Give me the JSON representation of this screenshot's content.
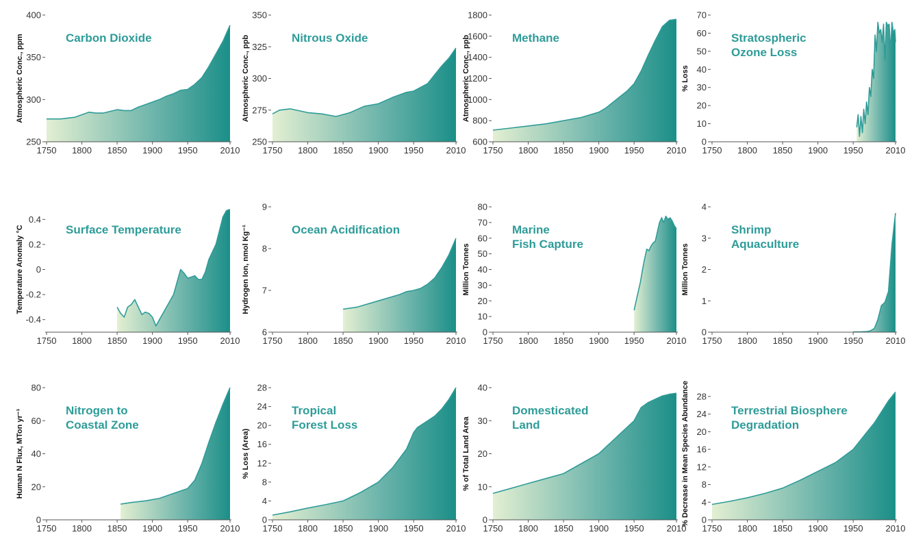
{
  "colors": {
    "accent": "#2e9c98",
    "fill_start": "#e3efd2",
    "fill_end": "#1b8f88",
    "axis": "#555555"
  },
  "chart_data": [
    {
      "type": "area",
      "title": [
        "Carbon Dioxide"
      ],
      "ylabel": "Atmospheric Conc., ppm",
      "xlim": [
        1750,
        2010
      ],
      "ylim": [
        250,
        400
      ],
      "x_ticks": [
        1750,
        1800,
        1850,
        1900,
        1950,
        2010
      ],
      "y_ticks": [
        250,
        300,
        350,
        400
      ],
      "x": [
        1750,
        1770,
        1790,
        1800,
        1810,
        1820,
        1830,
        1850,
        1860,
        1870,
        1880,
        1890,
        1900,
        1910,
        1920,
        1930,
        1940,
        1950,
        1960,
        1970,
        1980,
        1990,
        2000,
        2010
      ],
      "y": [
        277,
        277,
        279,
        282,
        285,
        284,
        284,
        288,
        287,
        287,
        291,
        294,
        297,
        300,
        304,
        307,
        311,
        312,
        318,
        326,
        339,
        354,
        369,
        388
      ]
    },
    {
      "type": "area",
      "title": [
        "Nitrous Oxide"
      ],
      "ylabel": "Atmospheric Conc., ppb",
      "xlim": [
        1750,
        2010
      ],
      "ylim": [
        250,
        350
      ],
      "x_ticks": [
        1750,
        1800,
        1850,
        1900,
        1950,
        2010
      ],
      "y_ticks": [
        250,
        275,
        300,
        325,
        350
      ],
      "x": [
        1750,
        1760,
        1775,
        1800,
        1820,
        1840,
        1860,
        1880,
        1900,
        1920,
        1940,
        1950,
        1960,
        1970,
        1980,
        1990,
        2000,
        2010
      ],
      "y": [
        272,
        275,
        276,
        273,
        272,
        270,
        273,
        278,
        280,
        285,
        289,
        290,
        293,
        296,
        303,
        310,
        316,
        324
      ]
    },
    {
      "type": "area",
      "title": [
        "Methane"
      ],
      "ylabel": "Atmospheric Conc., ppb",
      "xlim": [
        1750,
        2010
      ],
      "ylim": [
        600,
        1800
      ],
      "x_ticks": [
        1750,
        1800,
        1850,
        1900,
        1950,
        2010
      ],
      "y_ticks": [
        600,
        800,
        1000,
        1200,
        1400,
        1600,
        1800
      ],
      "x": [
        1750,
        1775,
        1800,
        1825,
        1850,
        1875,
        1900,
        1910,
        1925,
        1940,
        1950,
        1960,
        1970,
        1980,
        1990,
        2000,
        2010
      ],
      "y": [
        710,
        730,
        750,
        770,
        800,
        830,
        880,
        920,
        1000,
        1080,
        1150,
        1270,
        1420,
        1560,
        1690,
        1750,
        1760
      ]
    },
    {
      "type": "line",
      "title": [
        "Stratospheric",
        "Ozone Loss"
      ],
      "ylabel": "% Loss",
      "xlim": [
        1750,
        2010
      ],
      "ylim": [
        0,
        70
      ],
      "x_ticks": [
        1750,
        1800,
        1850,
        1900,
        1950,
        2010
      ],
      "y_ticks": [
        0,
        10,
        20,
        30,
        40,
        50,
        60,
        70
      ],
      "x": [
        1955,
        1957,
        1959,
        1961,
        1963,
        1965,
        1967,
        1969,
        1971,
        1973,
        1975,
        1977,
        1979,
        1981,
        1983,
        1985,
        1987,
        1989,
        1991,
        1993,
        1995,
        1997,
        1999,
        2001,
        2003,
        2005,
        2007,
        2009,
        2010
      ],
      "y": [
        8,
        15,
        3,
        14,
        5,
        18,
        10,
        22,
        15,
        30,
        25,
        40,
        35,
        59,
        50,
        66,
        60,
        62,
        55,
        65,
        45,
        66,
        64,
        65,
        50,
        66,
        60,
        62,
        55
      ]
    },
    {
      "type": "area",
      "title": [
        "Surface Temperature"
      ],
      "ylabel": "Temperature Anomaly °C",
      "xlim": [
        1750,
        2010
      ],
      "ylim": [
        -0.5,
        0.5
      ],
      "x_ticks": [
        1750,
        1800,
        1850,
        1900,
        1950,
        2010
      ],
      "y_ticks": [
        -0.4,
        -0.2,
        0,
        0.2,
        0.4
      ],
      "x": [
        1850,
        1855,
        1860,
        1865,
        1870,
        1875,
        1880,
        1885,
        1890,
        1895,
        1900,
        1905,
        1910,
        1920,
        1930,
        1940,
        1945,
        1950,
        1955,
        1960,
        1965,
        1970,
        1975,
        1980,
        1990,
        2000,
        2005,
        2010
      ],
      "y": [
        -0.3,
        -0.35,
        -0.38,
        -0.3,
        -0.28,
        -0.24,
        -0.3,
        -0.36,
        -0.34,
        -0.35,
        -0.38,
        -0.45,
        -0.4,
        -0.3,
        -0.2,
        0.0,
        -0.03,
        -0.07,
        -0.06,
        -0.05,
        -0.08,
        -0.08,
        -0.02,
        0.08,
        0.2,
        0.42,
        0.47,
        0.48
      ]
    },
    {
      "type": "area",
      "title": [
        "Ocean Acidification"
      ],
      "ylabel": "Hydrogen Ion, nmol Kg⁻¹",
      "xlim": [
        1750,
        2010
      ],
      "ylim": [
        6,
        9
      ],
      "x_ticks": [
        1750,
        1800,
        1850,
        1900,
        1950,
        2010
      ],
      "y_ticks": [
        6,
        7,
        8,
        9
      ],
      "x": [
        1850,
        1870,
        1890,
        1910,
        1930,
        1940,
        1950,
        1960,
        1970,
        1980,
        1990,
        2000,
        2010
      ],
      "y": [
        6.55,
        6.6,
        6.7,
        6.8,
        6.9,
        6.97,
        7.0,
        7.05,
        7.15,
        7.3,
        7.55,
        7.85,
        8.25
      ]
    },
    {
      "type": "area",
      "title": [
        "Marine",
        "Fish Capture"
      ],
      "ylabel": "Million Tonnes",
      "xlim": [
        1750,
        2010
      ],
      "ylim": [
        0,
        80
      ],
      "x_ticks": [
        1750,
        1800,
        1850,
        1900,
        1950,
        2010
      ],
      "y_ticks": [
        0,
        10,
        20,
        30,
        40,
        50,
        60,
        70,
        80
      ],
      "x": [
        1950,
        1953,
        1956,
        1959,
        1962,
        1965,
        1968,
        1971,
        1974,
        1977,
        1980,
        1983,
        1986,
        1989,
        1992,
        1995,
        1998,
        2001,
        2004,
        2007,
        2010
      ],
      "y": [
        14,
        20,
        26,
        32,
        40,
        47,
        53,
        52,
        55,
        57,
        58,
        64,
        70,
        73,
        70,
        74,
        72,
        73,
        71,
        68,
        66
      ]
    },
    {
      "type": "area",
      "title": [
        "Shrimp",
        "Aquaculture"
      ],
      "ylabel": "Million Tonnes",
      "xlim": [
        1750,
        2010
      ],
      "ylim": [
        0,
        4
      ],
      "x_ticks": [
        1750,
        1800,
        1850,
        1900,
        1950,
        2010
      ],
      "y_ticks": [
        0,
        1,
        2,
        3,
        4
      ],
      "x": [
        1950,
        1960,
        1970,
        1975,
        1980,
        1985,
        1990,
        1995,
        2000,
        2005,
        2010
      ],
      "y": [
        0.01,
        0.01,
        0.02,
        0.05,
        0.12,
        0.4,
        0.85,
        0.95,
        1.3,
        2.8,
        3.8
      ]
    },
    {
      "type": "area",
      "title": [
        "Nitrogen to",
        "Coastal Zone"
      ],
      "ylabel": "Human N Flux, MTon yr⁻¹",
      "xlim": [
        1750,
        2010
      ],
      "ylim": [
        0,
        80
      ],
      "x_ticks": [
        1750,
        1800,
        1850,
        1900,
        1950,
        2010
      ],
      "y_ticks": [
        0,
        20,
        40,
        60,
        80
      ],
      "x": [
        1855,
        1870,
        1890,
        1910,
        1930,
        1950,
        1960,
        1970,
        1980,
        1990,
        2000,
        2010
      ],
      "y": [
        9.5,
        10.5,
        11.5,
        13,
        16,
        19,
        24,
        34,
        47,
        59,
        70,
        80
      ]
    },
    {
      "type": "area",
      "title": [
        "Tropical",
        "Forest Loss"
      ],
      "ylabel": "% Loss (Area)",
      "xlim": [
        1750,
        2010
      ],
      "ylim": [
        0,
        28
      ],
      "x_ticks": [
        1750,
        1800,
        1850,
        1900,
        1950,
        2010
      ],
      "y_ticks": [
        0,
        4,
        8,
        12,
        16,
        20,
        24,
        28
      ],
      "x": [
        1750,
        1775,
        1800,
        1825,
        1850,
        1875,
        1900,
        1920,
        1940,
        1950,
        1955,
        1960,
        1970,
        1980,
        1990,
        2000,
        2010
      ],
      "y": [
        1.0,
        1.7,
        2.5,
        3.2,
        4.0,
        5.8,
        8.0,
        11,
        15,
        18.5,
        19.5,
        20,
        21,
        22,
        23.5,
        25.5,
        28
      ]
    },
    {
      "type": "area",
      "title": [
        "Domesticated",
        "Land"
      ],
      "ylabel": "% of Total Land Area",
      "xlim": [
        1750,
        2010
      ],
      "ylim": [
        0,
        40
      ],
      "x_ticks": [
        1750,
        1800,
        1850,
        1900,
        1950,
        2010
      ],
      "y_ticks": [
        0,
        10,
        20,
        30,
        40
      ],
      "x": [
        1750,
        1775,
        1800,
        1825,
        1850,
        1875,
        1900,
        1925,
        1950,
        1960,
        1970,
        1980,
        1990,
        2000,
        2010
      ],
      "y": [
        8,
        9.5,
        11,
        12.5,
        14,
        17,
        20,
        25,
        30,
        34,
        35.5,
        36.5,
        37.5,
        38,
        38.3
      ]
    },
    {
      "type": "area",
      "title": [
        "Terrestrial Biosphere",
        "Degradation"
      ],
      "ylabel": "% Decrease in Mean Species Abundance",
      "xlim": [
        1750,
        2010
      ],
      "ylim": [
        0,
        30
      ],
      "x_ticks": [
        1750,
        1800,
        1850,
        1900,
        1950,
        2010
      ],
      "y_ticks": [
        0,
        4,
        8,
        12,
        16,
        20,
        24,
        28
      ],
      "x": [
        1750,
        1775,
        1800,
        1825,
        1850,
        1875,
        1900,
        1925,
        1950,
        1960,
        1970,
        1980,
        1990,
        2000,
        2010
      ],
      "y": [
        3.5,
        4.2,
        5.0,
        6.0,
        7.2,
        9.0,
        11.0,
        13.0,
        16.0,
        18,
        20,
        22,
        24.5,
        27,
        29
      ]
    }
  ]
}
